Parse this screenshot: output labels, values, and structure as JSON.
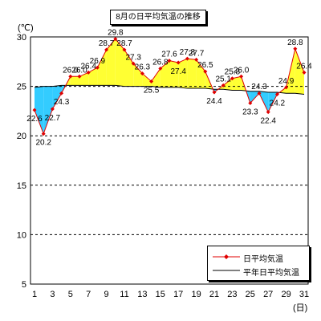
{
  "chart_data": {
    "type": "line",
    "title": "8月の日平均気温の推移",
    "ylabel": "(℃)",
    "xlabel": "(日)",
    "ylim": [
      5,
      30
    ],
    "yticks": [
      5,
      10,
      15,
      20,
      25,
      30
    ],
    "xticks": [
      1,
      3,
      5,
      7,
      9,
      11,
      13,
      15,
      17,
      19,
      21,
      23,
      25,
      27,
      29,
      31
    ],
    "grid": "horizontal dashed",
    "legend_position": "bottom-right",
    "x": [
      1,
      2,
      3,
      4,
      5,
      6,
      7,
      8,
      9,
      10,
      11,
      12,
      13,
      14,
      15,
      16,
      17,
      18,
      19,
      20,
      21,
      22,
      23,
      24,
      25,
      26,
      27,
      28,
      29,
      30,
      31
    ],
    "series": [
      {
        "name": "日平均気温",
        "color": "#e00000",
        "marker": "diamond",
        "values": [
          22.6,
          20.2,
          22.7,
          24.3,
          26.0,
          26.0,
          26.4,
          26.9,
          28.7,
          29.8,
          28.7,
          27.3,
          26.3,
          25.5,
          26.8,
          27.6,
          27.4,
          27.8,
          27.7,
          26.5,
          24.4,
          25.1,
          25.8,
          26.0,
          23.3,
          24.3,
          22.4,
          24.2,
          24.9,
          28.8,
          26.4
        ]
      },
      {
        "name": "平年日平均気温",
        "color": "#000000",
        "values": [
          24.9,
          25.0,
          25.0,
          25.1,
          25.1,
          25.1,
          25.1,
          25.1,
          25.1,
          25.1,
          25.0,
          25.0,
          25.0,
          25.0,
          24.9,
          24.9,
          24.9,
          24.8,
          24.8,
          24.8,
          24.7,
          24.7,
          24.6,
          24.6,
          24.5,
          24.5,
          24.4,
          24.4,
          24.3,
          24.3,
          24.2
        ]
      }
    ],
    "fill_above_color": "#ffff33",
    "fill_below_color": "#33ccff"
  }
}
